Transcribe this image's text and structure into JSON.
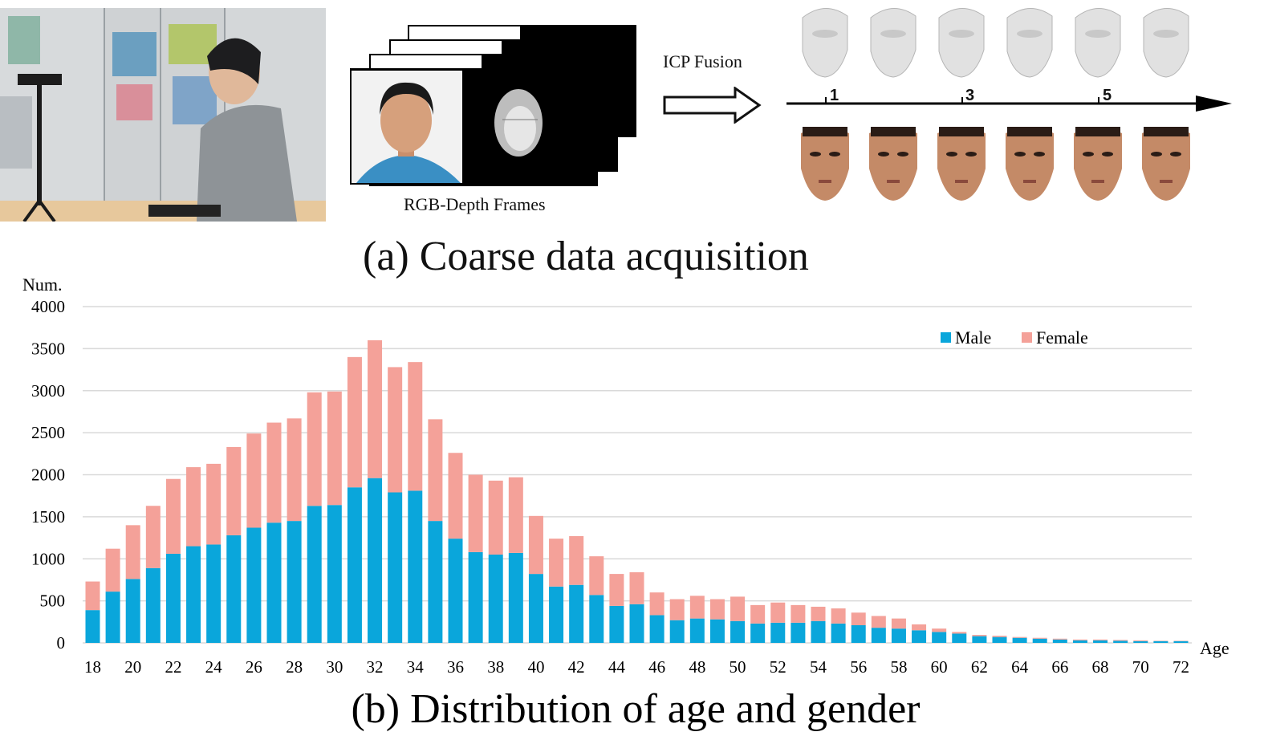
{
  "panel_a": {
    "frames_label": "RGB-Depth Frames",
    "fusion_label": "ICP Fusion",
    "timeline_ticks": [
      "1",
      "3",
      "5"
    ],
    "caption": "(a) Coarse data acquisition"
  },
  "panel_b": {
    "caption": "(b) Distribution of age and gender"
  },
  "chart_data": {
    "type": "bar",
    "stacked": true,
    "ylabel": "Num.",
    "xlabel": "Age",
    "ylim": [
      0,
      4000
    ],
    "yticks": [
      0,
      500,
      1000,
      1500,
      2000,
      2500,
      3000,
      3500,
      4000
    ],
    "x_tick_labels": [
      "18",
      "20",
      "22",
      "24",
      "26",
      "28",
      "30",
      "32",
      "34",
      "36",
      "38",
      "40",
      "42",
      "44",
      "46",
      "48",
      "50",
      "52",
      "54",
      "56",
      "58",
      "60",
      "62",
      "64",
      "66",
      "68",
      "70",
      "72"
    ],
    "grid": true,
    "legend_position": "top-right",
    "categories": [
      18,
      19,
      20,
      21,
      22,
      23,
      24,
      25,
      26,
      27,
      28,
      29,
      30,
      31,
      32,
      33,
      34,
      35,
      36,
      37,
      38,
      39,
      40,
      41,
      42,
      43,
      44,
      45,
      46,
      47,
      48,
      49,
      50,
      51,
      52,
      53,
      54,
      55,
      56,
      57,
      58,
      59,
      60,
      61,
      62,
      63,
      64,
      65,
      66,
      67,
      68,
      69,
      70,
      71,
      72
    ],
    "series": [
      {
        "name": "Male",
        "color": "#0aa6db",
        "values": [
          390,
          610,
          760,
          890,
          1060,
          1150,
          1170,
          1280,
          1370,
          1430,
          1450,
          1630,
          1640,
          1850,
          1960,
          1790,
          1810,
          1450,
          1240,
          1080,
          1050,
          1070,
          820,
          670,
          690,
          570,
          440,
          460,
          330,
          270,
          290,
          280,
          260,
          230,
          240,
          240,
          260,
          230,
          210,
          180,
          170,
          150,
          130,
          110,
          80,
          70,
          60,
          50,
          40,
          30,
          30,
          25,
          20,
          20,
          20
        ]
      },
      {
        "name": "Female",
        "color": "#f4a199",
        "values": [
          340,
          510,
          640,
          740,
          890,
          940,
          960,
          1050,
          1120,
          1190,
          1220,
          1350,
          1350,
          1550,
          1640,
          1490,
          1530,
          1210,
          1020,
          920,
          880,
          900,
          690,
          570,
          580,
          460,
          380,
          380,
          270,
          250,
          270,
          240,
          290,
          220,
          240,
          210,
          170,
          180,
          150,
          140,
          120,
          70,
          40,
          20,
          15,
          15,
          10,
          10,
          10,
          10,
          10,
          10,
          10,
          5,
          5
        ]
      }
    ]
  },
  "colors": {
    "male": "#0aa6db",
    "female": "#f4a199",
    "grid": "#d9d9d9"
  }
}
